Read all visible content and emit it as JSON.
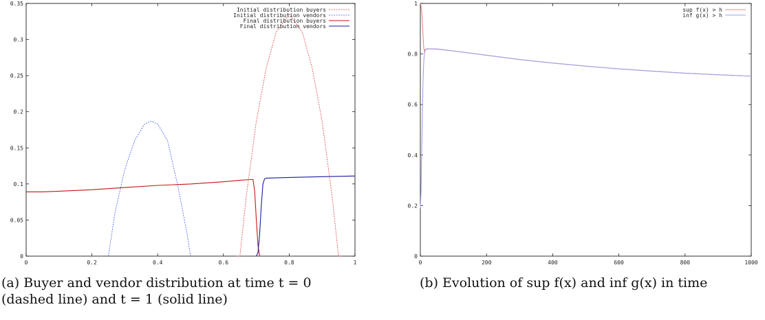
{
  "chart_data": [
    {
      "type": "line",
      "title": "",
      "xlabel": "",
      "ylabel": "",
      "xlim": [
        0,
        1
      ],
      "ylim": [
        0,
        0.35
      ],
      "x_ticks": [
        "0",
        "0.2",
        "0.4",
        "0.6",
        "0.8",
        "1"
      ],
      "y_ticks": [
        "0",
        "0.05",
        "0.1",
        "0.15",
        "0.2",
        "0.25",
        "0.3",
        "0.35"
      ],
      "grid": false,
      "legend_position": "top-right",
      "series": [
        {
          "name": "Initial distribution buyers",
          "style": "dashed",
          "color": "#e04040",
          "x": [
            0.64,
            0.65,
            0.67,
            0.7,
            0.73,
            0.76,
            0.8,
            0.84,
            0.87,
            0.9,
            0.93,
            0.95,
            0.96
          ],
          "y": [
            0,
            0.0,
            0.085,
            0.187,
            0.26,
            0.31,
            0.335,
            0.31,
            0.26,
            0.187,
            0.085,
            0.0,
            0
          ]
        },
        {
          "name": "Initial distribution vendors",
          "style": "dashed",
          "color": "#4060e0",
          "x": [
            0.25,
            0.27,
            0.3,
            0.33,
            0.36,
            0.38,
            0.4,
            0.43,
            0.46,
            0.49,
            0.5
          ],
          "y": [
            0,
            0.06,
            0.12,
            0.16,
            0.183,
            0.187,
            0.183,
            0.16,
            0.1,
            0.03,
            0
          ]
        },
        {
          "name": "Final distribution buyers",
          "style": "solid",
          "color": "#cc1111",
          "x": [
            0,
            0.05,
            0.1,
            0.2,
            0.3,
            0.4,
            0.5,
            0.6,
            0.65,
            0.68,
            0.69,
            0.695,
            0.7,
            0.705,
            0.71
          ],
          "y": [
            0.089,
            0.089,
            0.09,
            0.092,
            0.095,
            0.098,
            0.1,
            0.103,
            0.105,
            0.106,
            0.106,
            0.09,
            0.05,
            0.015,
            0
          ]
        },
        {
          "name": "Final distribution vendors",
          "style": "solid",
          "color": "#1a1aa0",
          "x": [
            0.7,
            0.705,
            0.71,
            0.715,
            0.72,
            0.725,
            0.73,
            0.8,
            0.9,
            1.0
          ],
          "y": [
            0,
            0.005,
            0.03,
            0.07,
            0.1,
            0.107,
            0.108,
            0.109,
            0.11,
            0.111
          ]
        }
      ]
    },
    {
      "type": "line",
      "title": "",
      "xlabel": "",
      "ylabel": "",
      "xlim": [
        0,
        1000
      ],
      "ylim": [
        0,
        1
      ],
      "x_ticks": [
        "0",
        "200",
        "400",
        "600",
        "800",
        "1000"
      ],
      "y_ticks": [
        "0",
        "0.2",
        "0.4",
        "0.6",
        "0.8",
        "1"
      ],
      "grid": false,
      "legend_position": "top-right",
      "series": [
        {
          "name": "sup f(x) > h",
          "style": "solid",
          "color": "#ee8888",
          "x": [
            0,
            2,
            4,
            6,
            8,
            10,
            12,
            15,
            20,
            30,
            50,
            100,
            200,
            300,
            400,
            500,
            600,
            700,
            800,
            900,
            1000
          ],
          "y": [
            1.0,
            0.99,
            0.97,
            0.93,
            0.88,
            0.83,
            0.81,
            0.818,
            0.82,
            0.82,
            0.819,
            0.812,
            0.795,
            0.778,
            0.764,
            0.752,
            0.741,
            0.732,
            0.724,
            0.718,
            0.712
          ]
        },
        {
          "name": "inf g(x) > h",
          "style": "solid",
          "color": "#a0a0e8",
          "x": [
            0,
            2,
            4,
            6,
            8,
            10,
            12,
            15,
            20,
            30,
            50,
            100,
            200,
            300,
            400,
            500,
            600,
            700,
            800,
            900,
            1000
          ],
          "y": [
            0.19,
            0.25,
            0.4,
            0.55,
            0.68,
            0.76,
            0.8,
            0.815,
            0.82,
            0.82,
            0.82,
            0.812,
            0.795,
            0.778,
            0.764,
            0.752,
            0.741,
            0.732,
            0.724,
            0.718,
            0.712
          ]
        }
      ]
    }
  ],
  "captions": {
    "a_line1": "(a) Buyer and vendor distribution at time t = 0",
    "a_line2": "(dashed line) and t = 1 (solid line)",
    "b_line1": "(b) Evolution of sup f(x) and inf g(x) in time"
  }
}
